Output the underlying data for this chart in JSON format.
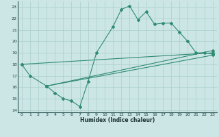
{
  "xlabel": "Humidex (Indice chaleur)",
  "ylabel": "",
  "xlim": [
    -0.5,
    23.5
  ],
  "ylim": [
    13.8,
    23.5
  ],
  "yticks": [
    14,
    15,
    16,
    17,
    18,
    19,
    20,
    21,
    22,
    23
  ],
  "xticks": [
    0,
    1,
    2,
    3,
    4,
    5,
    6,
    7,
    8,
    9,
    10,
    11,
    12,
    13,
    14,
    15,
    16,
    17,
    18,
    19,
    20,
    21,
    22,
    23
  ],
  "bg_color": "#cce5e5",
  "line_color": "#2e8b74",
  "grid_color": "#aacfcf",
  "lines": [
    {
      "x": [
        0,
        1,
        3,
        4,
        5,
        6,
        7,
        8,
        9,
        11,
        12,
        13,
        14,
        15,
        16,
        17,
        18,
        19,
        20,
        21,
        22,
        23
      ],
      "y": [
        18,
        17,
        16.1,
        15.5,
        15.0,
        14.8,
        14.3,
        16.5,
        19.0,
        21.3,
        22.8,
        23.1,
        21.9,
        22.6,
        21.5,
        21.6,
        21.6,
        20.8,
        20.0,
        19.0,
        19.0,
        18.9
      ]
    },
    {
      "x": [
        0,
        23
      ],
      "y": [
        18,
        19.0
      ]
    },
    {
      "x": [
        3,
        23
      ],
      "y": [
        16.1,
        19.2
      ]
    },
    {
      "x": [
        3,
        23
      ],
      "y": [
        16.1,
        18.8
      ]
    }
  ]
}
